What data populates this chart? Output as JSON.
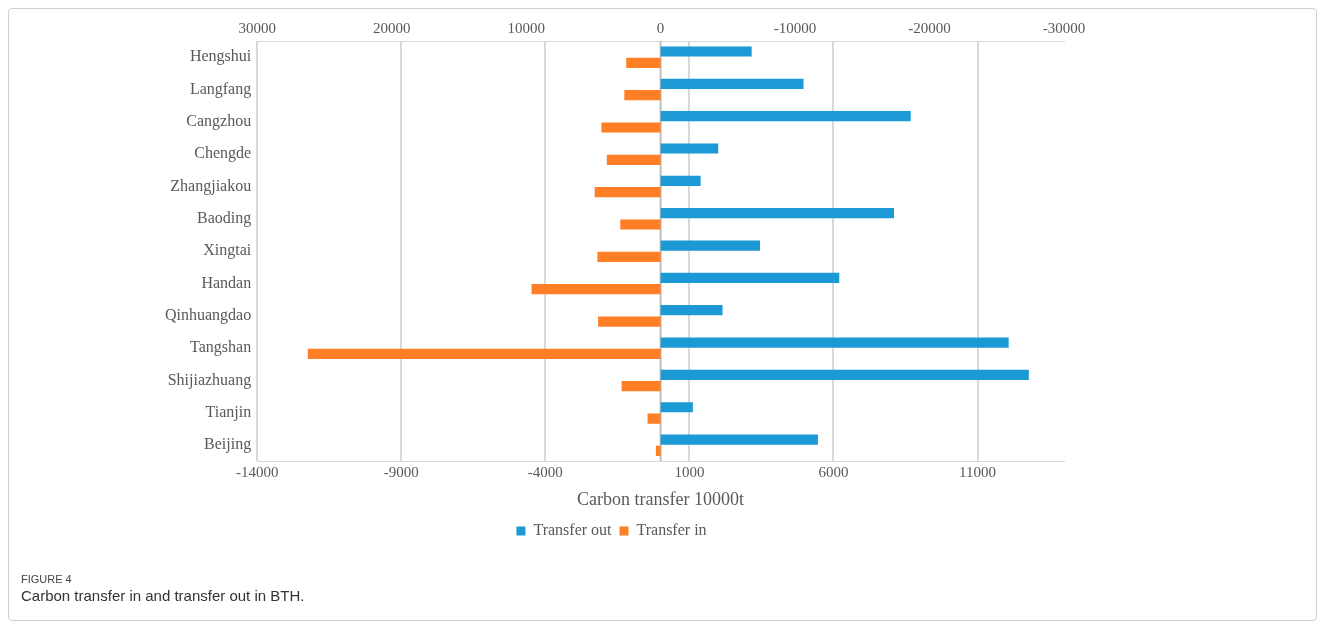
{
  "chart_data": {
    "type": "bar",
    "orientation": "horizontal",
    "categories": [
      "Hengshui",
      "Langfang",
      "Cangzhou",
      "Chengde",
      "Zhangjiakou",
      "Baoding",
      "Xingtai",
      "Handan",
      "Qinhuangdao",
      "Tangshan",
      "Shijiazhuang",
      "Tianjin",
      "Beijing"
    ],
    "series": [
      {
        "name": "Transfer out",
        "color": "#1b9ad6",
        "values": [
          3160,
          4960,
          8680,
          2000,
          1390,
          8100,
          3450,
          6200,
          2150,
          12080,
          12780,
          1120,
          5460
        ]
      },
      {
        "name": "Transfer in",
        "color": "#ff7f27",
        "axis": "x2",
        "values": [
          2560,
          2700,
          4400,
          4000,
          4900,
          3000,
          4700,
          9600,
          4650,
          26240,
          2900,
          970,
          350
        ]
      }
    ],
    "xlim": [
      -14000,
      14000
    ],
    "xticks": [
      -14000,
      -9000,
      -4000,
      1000,
      6000,
      11000
    ],
    "x2lim": [
      30000,
      -30000
    ],
    "x2ticks": [
      30000,
      20000,
      10000,
      0,
      -10000,
      -20000,
      -30000
    ],
    "xlabel": "Carbon transfer 10000t",
    "grid": "x",
    "legend": "bottom",
    "annotations": [
      "FIGURE 4",
      "Carbon transfer in and transfer out in BTH."
    ]
  }
}
